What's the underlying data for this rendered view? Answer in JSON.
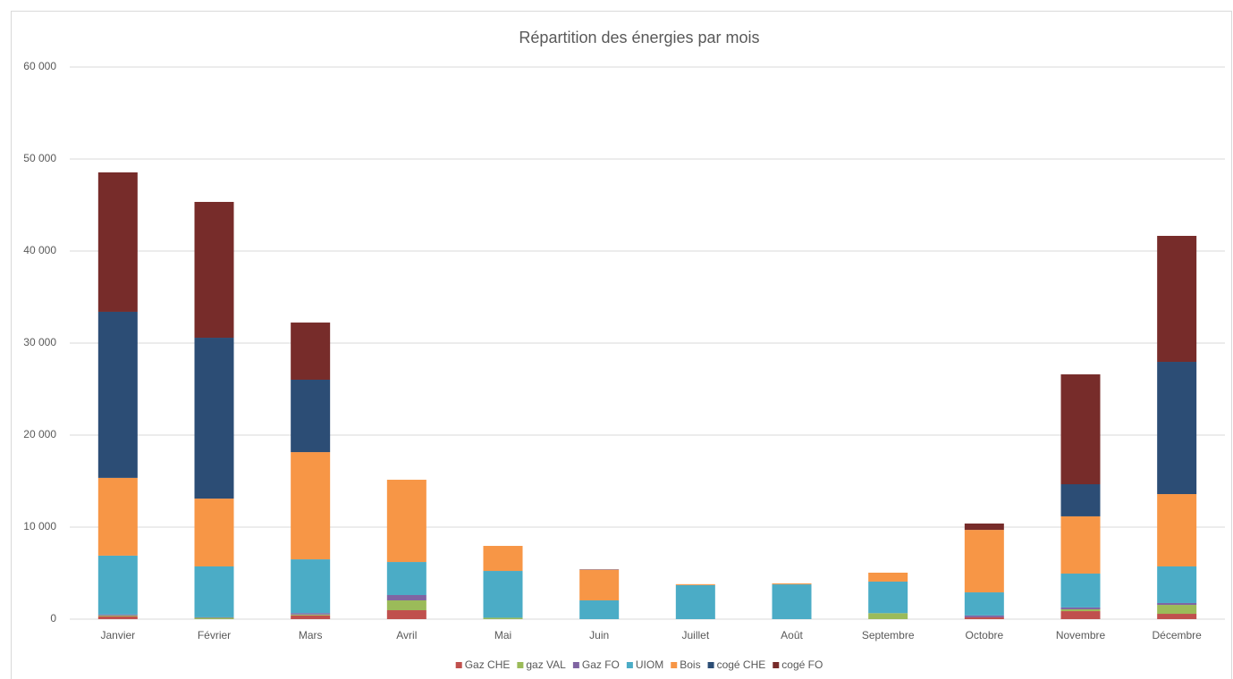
{
  "chart_data": {
    "type": "stacked_bar",
    "title": "Répartition des énergies par mois",
    "categories": [
      "Janvier",
      "Février",
      "Mars",
      "Avril",
      "Mai",
      "Juin",
      "Juillet",
      "Août",
      "Septembre",
      "Octobre",
      "Novembre",
      "Décembre"
    ],
    "series": [
      {
        "name": "Gaz CHE",
        "color": "#c0504d",
        "values": [
          300,
          0,
          400,
          970,
          0,
          0,
          0,
          0,
          0,
          200,
          870,
          580
        ]
      },
      {
        "name": "gaz VAL",
        "color": "#9bbb59",
        "values": [
          100,
          150,
          100,
          1070,
          150,
          0,
          0,
          0,
          650,
          0,
          200,
          970
        ]
      },
      {
        "name": "Gaz FO",
        "color": "#8064a2",
        "values": [
          100,
          50,
          150,
          580,
          0,
          0,
          0,
          0,
          0,
          200,
          200,
          200
        ]
      },
      {
        "name": "UIOM",
        "color": "#4bacc6",
        "values": [
          6400,
          5530,
          5850,
          3590,
          5090,
          2040,
          3700,
          3780,
          3430,
          2510,
          3680,
          3980
        ]
      },
      {
        "name": "Bois",
        "color": "#f79646",
        "values": [
          8450,
          7370,
          11650,
          8940,
          2720,
          3300,
          100,
          100,
          970,
          6790,
          6220,
          7860
        ]
      },
      {
        "name": "cogé CHE",
        "color": "#2c4d75",
        "values": [
          18050,
          17480,
          7870,
          0,
          0,
          0,
          0,
          0,
          0,
          0,
          3490,
          14370
        ]
      },
      {
        "name": "cogé FO",
        "color": "#772c2a",
        "values": [
          15150,
          14760,
          6210,
          0,
          0,
          50,
          0,
          0,
          0,
          690,
          11940,
          13690
        ]
      }
    ],
    "ylim": [
      0,
      60000
    ],
    "yticks": [
      0,
      {
        "value": 10000,
        "label": "10 000"
      },
      {
        "value": 20000,
        "label": "20 000"
      },
      {
        "value": 30000,
        "label": "30 000"
      },
      {
        "value": 40000,
        "label": "40 000"
      },
      {
        "value": 50000,
        "label": "50 000"
      },
      {
        "value": 60000,
        "label": "60 000"
      }
    ],
    "grid": true,
    "legend": "bottom"
  }
}
